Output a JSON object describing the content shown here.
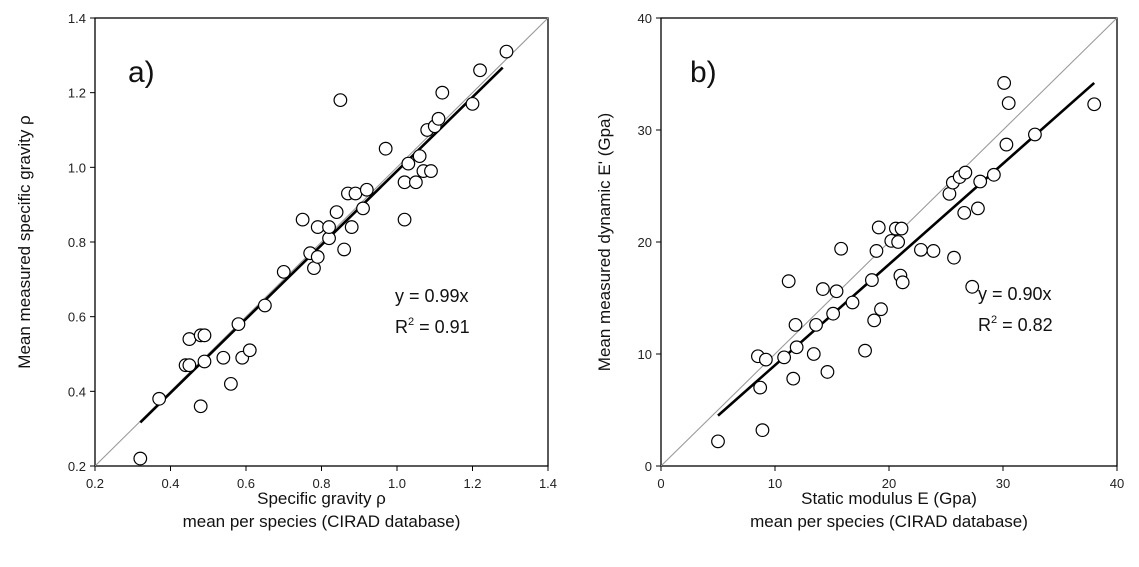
{
  "chart_data": [
    {
      "type": "scatter",
      "panel_label": "a)",
      "xlabel": "Specific gravity ρ",
      "xlabel2": "mean per species (CIRAD database)",
      "ylabel": "Mean measured specific gravity  ρ",
      "xlim": [
        0.2,
        1.4
      ],
      "ylim": [
        0.2,
        1.4
      ],
      "xticks": [
        "0.2",
        "0.4",
        "0.6",
        "0.8",
        "1.0",
        "1.2",
        "1.4"
      ],
      "yticks": [
        "0.2",
        "0.4",
        "0.6",
        "0.8",
        "1.0",
        "1.2",
        "1.4"
      ],
      "x_tick_values": [
        0.2,
        0.4,
        0.6,
        0.8,
        1.0,
        1.2,
        1.4
      ],
      "y_tick_values": [
        0.2,
        0.4,
        0.6,
        0.8,
        1.0,
        1.2,
        1.4
      ],
      "equation": "y = 0.99x",
      "r2_label": "R",
      "r2_sup": "2",
      "r2_value": " = 0.91",
      "slope": 0.99,
      "fit_range": [
        0.32,
        1.28
      ],
      "identity_line": true,
      "points": [
        [
          0.32,
          0.22
        ],
        [
          0.37,
          0.38
        ],
        [
          0.44,
          0.47
        ],
        [
          0.45,
          0.54
        ],
        [
          0.45,
          0.47
        ],
        [
          0.48,
          0.36
        ],
        [
          0.48,
          0.55
        ],
        [
          0.49,
          0.55
        ],
        [
          0.49,
          0.48
        ],
        [
          0.54,
          0.49
        ],
        [
          0.56,
          0.42
        ],
        [
          0.58,
          0.58
        ],
        [
          0.59,
          0.49
        ],
        [
          0.61,
          0.51
        ],
        [
          0.65,
          0.63
        ],
        [
          0.7,
          0.72
        ],
        [
          0.75,
          0.86
        ],
        [
          0.77,
          0.77
        ],
        [
          0.78,
          0.73
        ],
        [
          0.79,
          0.84
        ],
        [
          0.79,
          0.76
        ],
        [
          0.82,
          0.81
        ],
        [
          0.82,
          0.84
        ],
        [
          0.84,
          0.88
        ],
        [
          0.85,
          1.18
        ],
        [
          0.86,
          0.78
        ],
        [
          0.87,
          0.93
        ],
        [
          0.88,
          0.84
        ],
        [
          0.89,
          0.93
        ],
        [
          0.91,
          0.89
        ],
        [
          0.92,
          0.94
        ],
        [
          0.97,
          1.05
        ],
        [
          1.02,
          0.86
        ],
        [
          1.02,
          0.96
        ],
        [
          1.03,
          1.01
        ],
        [
          1.05,
          0.96
        ],
        [
          1.06,
          1.03
        ],
        [
          1.07,
          0.99
        ],
        [
          1.08,
          1.1
        ],
        [
          1.09,
          0.99
        ],
        [
          1.1,
          1.11
        ],
        [
          1.11,
          1.13
        ],
        [
          1.12,
          1.2
        ],
        [
          1.2,
          1.17
        ],
        [
          1.22,
          1.26
        ],
        [
          1.29,
          1.31
        ]
      ]
    },
    {
      "type": "scatter",
      "panel_label": "b)",
      "xlabel": "Static modulus E (Gpa)",
      "xlabel2": "mean per species (CIRAD database)",
      "ylabel": "Mean measured dynamic  E' (Gpa)",
      "xlim": [
        0,
        40
      ],
      "ylim": [
        0,
        40
      ],
      "xticks": [
        "0",
        "10",
        "20",
        "30",
        "40"
      ],
      "yticks": [
        "0",
        "10",
        "20",
        "30",
        "40"
      ],
      "x_tick_values": [
        0,
        10,
        20,
        30,
        40
      ],
      "y_tick_values": [
        0,
        10,
        20,
        30,
        40
      ],
      "equation": "y = 0.90x",
      "r2_label": "R",
      "r2_sup": "2",
      "r2_value": " = 0.82",
      "slope": 0.9,
      "fit_range": [
        5,
        38
      ],
      "identity_line": true,
      "points": [
        [
          5.0,
          2.2
        ],
        [
          8.5,
          9.8
        ],
        [
          8.7,
          7.0
        ],
        [
          8.9,
          3.2
        ],
        [
          9.2,
          9.5
        ],
        [
          10.8,
          9.7
        ],
        [
          11.2,
          16.5
        ],
        [
          11.6,
          7.8
        ],
        [
          11.8,
          12.6
        ],
        [
          11.9,
          10.6
        ],
        [
          13.4,
          10.0
        ],
        [
          13.6,
          12.6
        ],
        [
          14.2,
          15.8
        ],
        [
          14.6,
          8.4
        ],
        [
          15.1,
          13.6
        ],
        [
          15.4,
          15.6
        ],
        [
          15.8,
          19.4
        ],
        [
          16.8,
          14.6
        ],
        [
          17.9,
          10.3
        ],
        [
          18.5,
          16.6
        ],
        [
          18.7,
          13.0
        ],
        [
          18.9,
          19.2
        ],
        [
          19.1,
          21.3
        ],
        [
          19.3,
          14.0
        ],
        [
          20.2,
          20.1
        ],
        [
          20.6,
          21.2
        ],
        [
          20.8,
          20.0
        ],
        [
          21.0,
          17.0
        ],
        [
          21.1,
          21.2
        ],
        [
          21.2,
          16.4
        ],
        [
          22.8,
          19.3
        ],
        [
          23.9,
          19.2
        ],
        [
          25.3,
          24.3
        ],
        [
          25.6,
          25.3
        ],
        [
          25.7,
          18.6
        ],
        [
          26.2,
          25.8
        ],
        [
          26.6,
          22.6
        ],
        [
          26.7,
          26.2
        ],
        [
          27.3,
          16.0
        ],
        [
          27.8,
          23.0
        ],
        [
          28.0,
          25.4
        ],
        [
          29.2,
          26.0
        ],
        [
          30.1,
          34.2
        ],
        [
          30.3,
          28.7
        ],
        [
          30.5,
          32.4
        ],
        [
          32.8,
          29.6
        ],
        [
          38.0,
          32.3
        ]
      ]
    }
  ]
}
